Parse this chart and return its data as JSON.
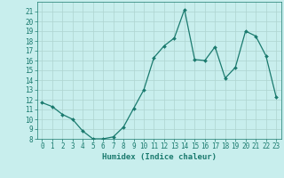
{
  "xlabel": "Humidex (Indice chaleur)",
  "x": [
    0,
    1,
    2,
    3,
    4,
    5,
    6,
    7,
    8,
    9,
    10,
    11,
    12,
    13,
    14,
    15,
    16,
    17,
    18,
    19,
    20,
    21,
    22,
    23
  ],
  "y": [
    11.7,
    11.3,
    10.5,
    10.0,
    8.8,
    8.0,
    8.0,
    8.2,
    9.2,
    11.1,
    13.0,
    16.3,
    17.5,
    18.3,
    21.2,
    16.1,
    16.0,
    17.4,
    14.2,
    15.3,
    19.0,
    18.5,
    16.5,
    12.3
  ],
  "line_color": "#1a7a6e",
  "bg_color": "#c8eeed",
  "grid_color": "#aed4d0",
  "ylim_min": 8,
  "ylim_max": 22,
  "yticks": [
    8,
    9,
    10,
    11,
    12,
    13,
    14,
    15,
    16,
    17,
    18,
    19,
    20,
    21
  ],
  "xticks": [
    0,
    1,
    2,
    3,
    4,
    5,
    6,
    7,
    8,
    9,
    10,
    11,
    12,
    13,
    14,
    15,
    16,
    17,
    18,
    19,
    20,
    21,
    22,
    23
  ],
  "tick_fontsize": 5.5,
  "xlabel_fontsize": 6.5
}
